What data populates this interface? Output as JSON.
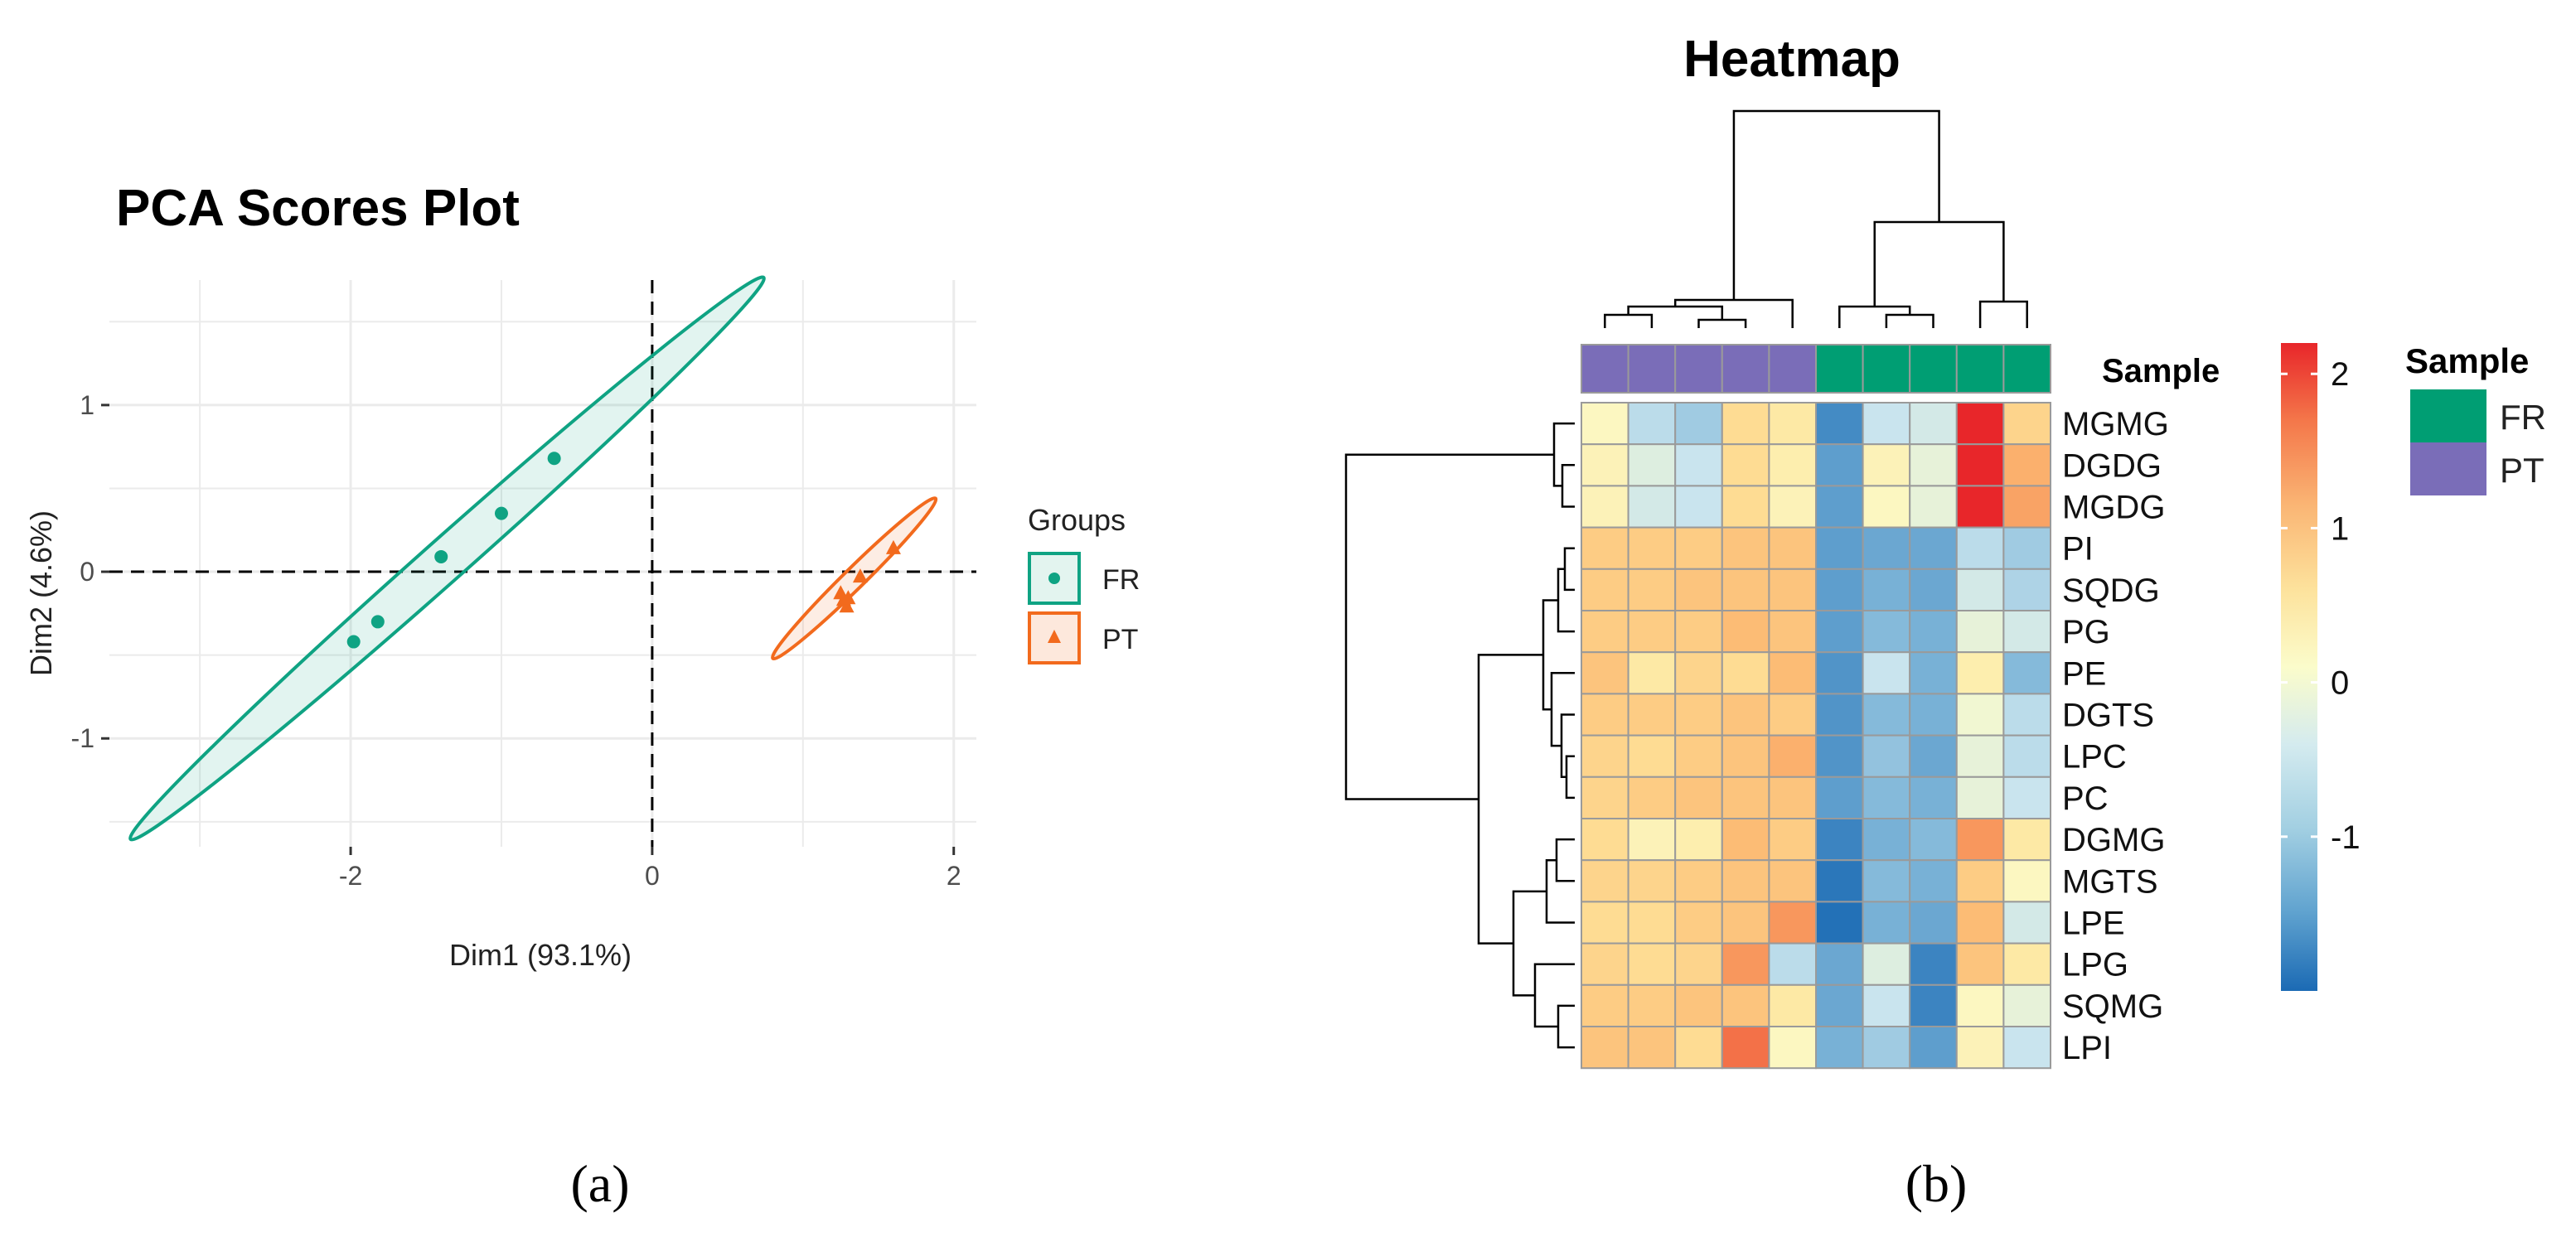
{
  "colors": {
    "fr": "#0FA383",
    "pt": "#F26A1D",
    "sample_fr": "#009E73",
    "sample_pt": "#7A6DB8",
    "grid": "#EBEBEB",
    "cell_border": "#9A9A9A",
    "tree": "#000000"
  },
  "chart_data": [
    {
      "type": "scatter",
      "title": "PCA Scores Plot",
      "xlabel": "Dim1 (93.1%)",
      "ylabel": "Dim2 (4.6%)",
      "xlim": [
        -3.6,
        2.15
      ],
      "ylim": [
        -1.65,
        1.75
      ],
      "xticks": [
        -2,
        0,
        2
      ],
      "xtick_labels": [
        "-2",
        "0",
        "2"
      ],
      "yticks": [
        -1,
        0,
        1
      ],
      "ytick_labels": [
        "-1",
        "0",
        "1"
      ],
      "grid": true,
      "reference_lines": {
        "x": 0,
        "y": 0,
        "style": "dashed"
      },
      "legend": {
        "title": "Groups",
        "position": "right",
        "entries": [
          "FR",
          "PT"
        ]
      },
      "series": [
        {
          "name": "FR",
          "marker": "circle",
          "points": [
            [
              -1.98,
              -0.42
            ],
            [
              -1.82,
              -0.3
            ],
            [
              -1.4,
              0.09
            ],
            [
              -1.0,
              0.35
            ],
            [
              -0.65,
              0.68
            ]
          ],
          "ellipse": {
            "center": [
              -1.36,
              0.08
            ],
            "tip_a": [
              -3.45,
              -1.61
            ],
            "tip_b": [
              0.75,
              1.76
            ],
            "minor": 0.05
          }
        },
        {
          "name": "PT",
          "marker": "triangle",
          "points": [
            [
              1.25,
              -0.13
            ],
            [
              1.27,
              -0.17
            ],
            [
              1.29,
              -0.21
            ],
            [
              1.38,
              -0.03
            ],
            [
              1.3,
              -0.16
            ],
            [
              1.6,
              0.14
            ]
          ],
          "ellipse": {
            "center": [
              1.34,
              -0.04
            ],
            "tip_a": [
              0.8,
              -0.52
            ],
            "tip_b": [
              1.88,
              0.44
            ],
            "minor": 0.09
          }
        }
      ]
    },
    {
      "type": "heatmap",
      "title": "Heatmap",
      "columns": [
        "PT",
        "PT",
        "PT",
        "PT",
        "PT",
        "FR",
        "FR",
        "FR",
        "FR",
        "FR"
      ],
      "annotation_label": "Sample",
      "rows": [
        "MGMG",
        "DGDG",
        "MGDG",
        "PI",
        "SQDG",
        "PG",
        "PE",
        "DGTS",
        "LPC",
        "PC",
        "DGMG",
        "MGTS",
        "LPE",
        "LPG",
        "SQMG",
        "LPI"
      ],
      "values": [
        [
          0.1,
          -0.6,
          -0.8,
          0.6,
          0.4,
          -1.5,
          -0.5,
          -0.4,
          2.2,
          0.7
        ],
        [
          0.2,
          -0.3,
          -0.5,
          0.6,
          0.3,
          -1.3,
          0.2,
          -0.2,
          2.2,
          1.1
        ],
        [
          0.2,
          -0.4,
          -0.5,
          0.6,
          0.2,
          -1.3,
          0.1,
          -0.2,
          2.2,
          1.2
        ],
        [
          0.8,
          0.8,
          0.8,
          0.9,
          0.9,
          -1.3,
          -1.2,
          -1.2,
          -0.6,
          -0.8
        ],
        [
          0.8,
          0.8,
          0.9,
          0.9,
          0.9,
          -1.3,
          -1.1,
          -1.2,
          -0.4,
          -0.7
        ],
        [
          0.8,
          0.8,
          0.8,
          1.0,
          0.9,
          -1.3,
          -1.0,
          -1.1,
          -0.2,
          -0.4
        ],
        [
          0.9,
          0.4,
          0.7,
          0.6,
          1.0,
          -1.4,
          -0.5,
          -1.1,
          0.3,
          -1.0
        ],
        [
          0.8,
          0.8,
          0.8,
          0.9,
          0.8,
          -1.4,
          -1.0,
          -1.1,
          -0.1,
          -0.6
        ],
        [
          0.7,
          0.6,
          0.8,
          0.9,
          1.1,
          -1.4,
          -0.9,
          -1.2,
          -0.2,
          -0.6
        ],
        [
          0.7,
          0.8,
          0.9,
          0.9,
          0.9,
          -1.3,
          -1.0,
          -1.1,
          -0.2,
          -0.5
        ],
        [
          0.6,
          0.2,
          0.3,
          1.0,
          0.8,
          -1.6,
          -1.1,
          -1.0,
          1.3,
          0.4
        ],
        [
          0.7,
          0.7,
          0.8,
          0.9,
          0.9,
          -1.8,
          -1.0,
          -1.1,
          0.8,
          0.1
        ],
        [
          0.6,
          0.6,
          0.8,
          0.9,
          1.3,
          -1.9,
          -1.1,
          -1.2,
          1.0,
          -0.4
        ],
        [
          0.7,
          0.6,
          0.7,
          1.3,
          -0.6,
          -1.2,
          -0.3,
          -1.6,
          0.9,
          0.4
        ],
        [
          0.8,
          0.8,
          0.9,
          0.9,
          0.4,
          -1.2,
          -0.5,
          -1.6,
          0.1,
          -0.2
        ],
        [
          0.9,
          0.9,
          0.6,
          1.6,
          0.1,
          -1.1,
          -0.8,
          -1.3,
          0.2,
          -0.5
        ]
      ],
      "colorbar": {
        "range": [
          -2,
          2.2
        ],
        "ticks": [
          2,
          1,
          0,
          -1
        ],
        "tick_labels": [
          "2",
          "1",
          "0",
          "-1"
        ]
      },
      "legend": {
        "title": "Sample",
        "position": "right",
        "entries": [
          "FR",
          "PT"
        ]
      }
    }
  ],
  "panel_labels": [
    "(a)",
    "(b)"
  ]
}
